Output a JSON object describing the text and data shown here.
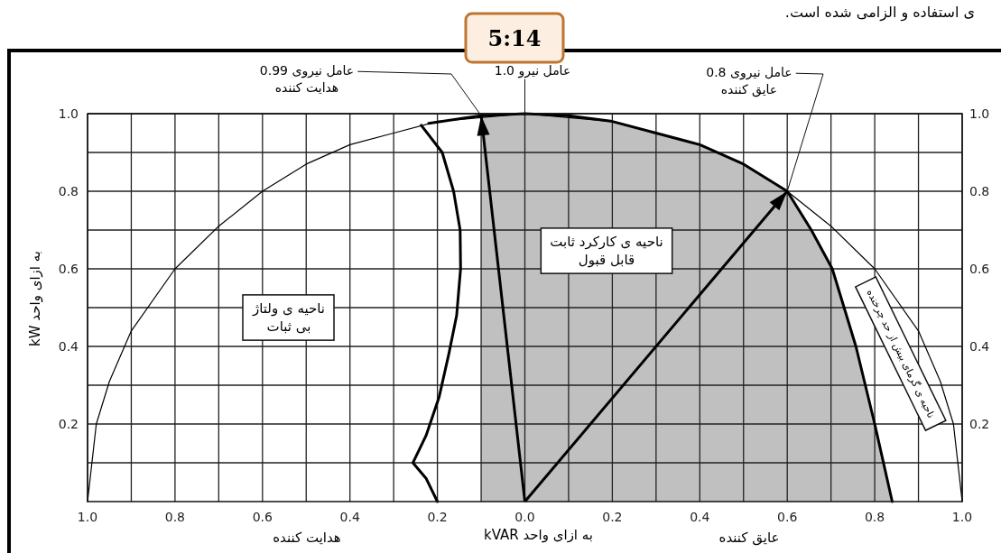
{
  "chart_data": {
    "type": "line",
    "xlim": [
      -1,
      1
    ],
    "ylim": [
      0,
      1
    ],
    "y2lim": [
      0,
      1
    ],
    "xticks": [
      {
        "value": -1,
        "label": "1.0"
      },
      {
        "value": -0.9,
        "label": null
      },
      {
        "value": -0.8,
        "label": "0.8"
      },
      {
        "value": -0.7,
        "label": null
      },
      {
        "value": -0.6,
        "label": "0.6"
      },
      {
        "value": -0.5,
        "label": null
      },
      {
        "value": -0.4,
        "label": "0.4"
      },
      {
        "value": -0.3,
        "label": null
      },
      {
        "value": -0.2,
        "label": "0.2"
      },
      {
        "value": -0.1,
        "label": null
      },
      {
        "value": 0,
        "label": "0.0"
      },
      {
        "value": 0.1,
        "label": null
      },
      {
        "value": 0.2,
        "label": "0.2"
      },
      {
        "value": 0.3,
        "label": null
      },
      {
        "value": 0.4,
        "label": "0.4"
      },
      {
        "value": 0.5,
        "label": null
      },
      {
        "value": 0.6,
        "label": "0.6"
      },
      {
        "value": 0.7,
        "label": null
      },
      {
        "value": 0.8,
        "label": "0.8"
      },
      {
        "value": 0.9,
        "label": null
      },
      {
        "value": 1,
        "label": "1.0"
      }
    ],
    "yticks": [
      {
        "value": 0.1,
        "label": null
      },
      {
        "value": 0.2,
        "label": "0.2"
      },
      {
        "value": 0.3,
        "label": null
      },
      {
        "value": 0.4,
        "label": "0.4"
      },
      {
        "value": 0.5,
        "label": null
      },
      {
        "value": 0.6,
        "label": "0.6"
      },
      {
        "value": 0.7,
        "label": null
      },
      {
        "value": 0.8,
        "label": "0.8"
      },
      {
        "value": 0.9,
        "label": null
      },
      {
        "value": 1,
        "label": "1.0"
      }
    ],
    "y2ticks": [
      {
        "value": 0.2,
        "label": "0.2"
      },
      {
        "value": 0.4,
        "label": "0.4"
      },
      {
        "value": 0.6,
        "label": "0.6"
      },
      {
        "value": 0.8,
        "label": "0.8"
      },
      {
        "value": 1,
        "label": "1.0"
      }
    ],
    "grid": true,
    "xlabel": "به ازای واحد kVAR",
    "ylabel": "به ازای واحد kW",
    "series": [
      {
        "type": "area",
        "color": "#c0c0c0",
        "x": [
          -0.1,
          -0.1,
          0,
          0.1,
          0.2,
          0.3,
          0.4,
          0.5,
          0.6,
          0.655,
          0.703,
          0.757,
          0.8,
          0.84
        ],
        "values": [
          0,
          0.995,
          1.0,
          0.995,
          0.98,
          0.95,
          0.92,
          0.87,
          0.8,
          0.7,
          0.6,
          0.4,
          0.2,
          0
        ]
      },
      {
        "color": "#000000",
        "x": [
          -1,
          -0.98,
          -0.95,
          -0.9,
          -0.8,
          -0.7,
          -0.6,
          -0.5,
          -0.4,
          -0.3,
          -0.2,
          0,
          0.1,
          0.2,
          0.3,
          0.4,
          0.5,
          0.6,
          0.7,
          0.8,
          0.9,
          0.95,
          0.98,
          1
        ],
        "values": [
          0,
          0.2,
          0.31,
          0.44,
          0.6,
          0.71,
          0.8,
          0.87,
          0.92,
          0.95,
          0.98,
          1.0,
          0.99,
          0.98,
          0.95,
          0.92,
          0.87,
          0.8,
          0.71,
          0.6,
          0.44,
          0.31,
          0.2,
          0
        ]
      },
      {
        "color": "#000000",
        "x": [
          -0.22,
          -0.1,
          0,
          0.1,
          0.2,
          0.3,
          0.4,
          0.5,
          0.6,
          0.655,
          0.703,
          0.757,
          0.8,
          0.84
        ],
        "values": [
          0.975,
          0.995,
          1.0,
          0.995,
          0.98,
          0.95,
          0.92,
          0.87,
          0.8,
          0.7,
          0.6,
          0.4,
          0.2,
          0
        ]
      },
      {
        "color": "#000000",
        "x": [
          -0.237,
          -0.189,
          -0.163,
          -0.148,
          -0.147,
          -0.156,
          -0.174,
          -0.196,
          -0.226,
          -0.256,
          -0.226,
          -0.2
        ],
        "values": [
          0.97,
          0.9,
          0.8,
          0.7,
          0.6,
          0.48,
          0.38,
          0.27,
          0.17,
          0.1,
          0.06,
          0
        ]
      },
      {
        "color": "#000000",
        "x": [
          0,
          -0.1
        ],
        "values": [
          0,
          0.995
        ]
      },
      {
        "color": "#000000",
        "x": [
          0,
          0.6
        ],
        "values": [
          0,
          0.8
        ]
      }
    ],
    "annotations": [
      "ی استفاده و الزامی شده است.",
      "5:14",
      {
        "text": "عامل نیروی 0.99\nهدایت کننده",
        "x": -0.1,
        "y": 0.995
      },
      {
        "text": "عامل نیرو 1.0",
        "x": 0,
        "y": 1.0
      },
      {
        "text": "عامل نیروی 0.8\nعایق کننده",
        "x": 0.6,
        "y": 0.8
      },
      "ناحیه ی ولتاژ\nبی ثبات",
      "ناحیه ی کارکرد ثابت\nقابل قبول",
      "ناحیه ی گرمای بیش از حد چرخنده",
      "هدایت کننده",
      "عایق کننده"
    ]
  }
}
